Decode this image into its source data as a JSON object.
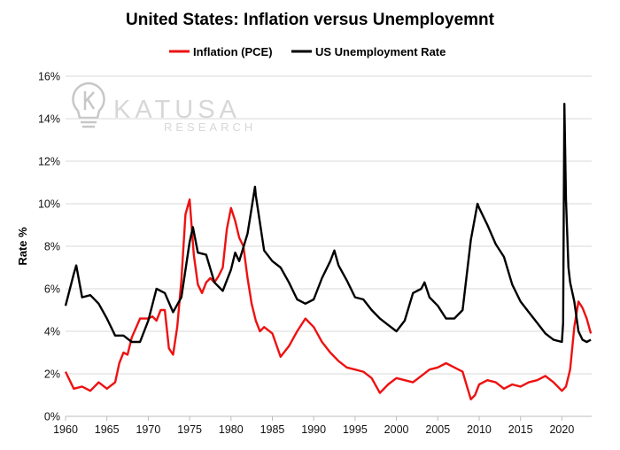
{
  "chart_data": {
    "type": "line",
    "title": "United States: Inflation versus Unemployemnt",
    "ylabel": "Rate %",
    "xlabel": "",
    "xlim": [
      1960,
      2023.6
    ],
    "ylim": [
      0,
      16
    ],
    "x_ticks": [
      "1960",
      "1965",
      "1970",
      "1975",
      "1980",
      "1985",
      "1990",
      "1995",
      "2000",
      "2005",
      "2010",
      "2015",
      "2020"
    ],
    "y_ticks": [
      "0%",
      "2%",
      "4%",
      "6%",
      "8%",
      "10%",
      "12%",
      "14%",
      "16%"
    ],
    "grid": "horizontal",
    "legend_position": "top",
    "series": [
      {
        "name": "Inflation (PCE)",
        "color": "#ee1111",
        "points": [
          [
            1960,
            2.1
          ],
          [
            1961,
            1.3
          ],
          [
            1962,
            1.4
          ],
          [
            1963,
            1.2
          ],
          [
            1964,
            1.6
          ],
          [
            1965,
            1.3
          ],
          [
            1966,
            1.6
          ],
          [
            1966.5,
            2.5
          ],
          [
            1967,
            3.0
          ],
          [
            1967.5,
            2.9
          ],
          [
            1968,
            3.7
          ],
          [
            1969,
            4.6
          ],
          [
            1970,
            4.6
          ],
          [
            1970.5,
            4.7
          ],
          [
            1971,
            4.5
          ],
          [
            1971.5,
            5.0
          ],
          [
            1972,
            5.0
          ],
          [
            1972.5,
            3.2
          ],
          [
            1973,
            2.9
          ],
          [
            1973.5,
            4.2
          ],
          [
            1974,
            6.4
          ],
          [
            1974.5,
            9.5
          ],
          [
            1975,
            10.2
          ],
          [
            1975.5,
            7.6
          ],
          [
            1976,
            6.2
          ],
          [
            1976.5,
            5.8
          ],
          [
            1977,
            6.3
          ],
          [
            1977.5,
            6.5
          ],
          [
            1978,
            6.3
          ],
          [
            1978.5,
            6.6
          ],
          [
            1979,
            7.0
          ],
          [
            1979.5,
            8.8
          ],
          [
            1980,
            9.8
          ],
          [
            1980.5,
            9.2
          ],
          [
            1981,
            8.4
          ],
          [
            1981.5,
            8.0
          ],
          [
            1982,
            6.5
          ],
          [
            1982.5,
            5.3
          ],
          [
            1983,
            4.5
          ],
          [
            1983.5,
            4.0
          ],
          [
            1984,
            4.2
          ],
          [
            1985,
            3.9
          ],
          [
            1986,
            2.8
          ],
          [
            1987,
            3.3
          ],
          [
            1988,
            4.0
          ],
          [
            1989,
            4.6
          ],
          [
            1990,
            4.2
          ],
          [
            1991,
            3.5
          ],
          [
            1992,
            3.0
          ],
          [
            1993,
            2.6
          ],
          [
            1994,
            2.3
          ],
          [
            1995,
            2.2
          ],
          [
            1996,
            2.1
          ],
          [
            1997,
            1.8
          ],
          [
            1998,
            1.1
          ],
          [
            1999,
            1.5
          ],
          [
            2000,
            1.8
          ],
          [
            2001,
            1.7
          ],
          [
            2002,
            1.6
          ],
          [
            2003,
            1.9
          ],
          [
            2004,
            2.2
          ],
          [
            2005,
            2.3
          ],
          [
            2006,
            2.5
          ],
          [
            2007,
            2.3
          ],
          [
            2008,
            2.1
          ],
          [
            2009,
            0.8
          ],
          [
            2009.5,
            1.0
          ],
          [
            2010,
            1.5
          ],
          [
            2011,
            1.7
          ],
          [
            2012,
            1.6
          ],
          [
            2013,
            1.3
          ],
          [
            2014,
            1.5
          ],
          [
            2015,
            1.4
          ],
          [
            2016,
            1.6
          ],
          [
            2017,
            1.7
          ],
          [
            2018,
            1.9
          ],
          [
            2019,
            1.6
          ],
          [
            2020,
            1.2
          ],
          [
            2020.5,
            1.4
          ],
          [
            2021,
            2.2
          ],
          [
            2021.5,
            4.2
          ],
          [
            2022,
            5.4
          ],
          [
            2022.5,
            5.1
          ],
          [
            2023,
            4.6
          ],
          [
            2023.5,
            3.9
          ]
        ]
      },
      {
        "name": "US Unemployment Rate",
        "color": "#000000",
        "points": [
          [
            1960,
            5.2
          ],
          [
            1961,
            6.7
          ],
          [
            1961.3,
            7.1
          ],
          [
            1962,
            5.6
          ],
          [
            1963,
            5.7
          ],
          [
            1964,
            5.3
          ],
          [
            1965,
            4.6
          ],
          [
            1966,
            3.8
          ],
          [
            1967,
            3.8
          ],
          [
            1968,
            3.5
          ],
          [
            1969,
            3.5
          ],
          [
            1970,
            4.5
          ],
          [
            1971,
            6.0
          ],
          [
            1972,
            5.8
          ],
          [
            1973,
            4.9
          ],
          [
            1974,
            5.6
          ],
          [
            1975,
            8.2
          ],
          [
            1975.4,
            8.9
          ],
          [
            1976,
            7.7
          ],
          [
            1977,
            7.6
          ],
          [
            1978,
            6.3
          ],
          [
            1979,
            5.9
          ],
          [
            1980,
            6.9
          ],
          [
            1980.5,
            7.7
          ],
          [
            1981,
            7.3
          ],
          [
            1982,
            8.6
          ],
          [
            1982.5,
            9.8
          ],
          [
            1982.9,
            10.8
          ],
          [
            1983,
            10.4
          ],
          [
            1984,
            7.8
          ],
          [
            1985,
            7.3
          ],
          [
            1986,
            7.0
          ],
          [
            1987,
            6.3
          ],
          [
            1988,
            5.5
          ],
          [
            1989,
            5.3
          ],
          [
            1990,
            5.5
          ],
          [
            1991,
            6.5
          ],
          [
            1992,
            7.3
          ],
          [
            1992.5,
            7.8
          ],
          [
            1993,
            7.1
          ],
          [
            1994,
            6.4
          ],
          [
            1995,
            5.6
          ],
          [
            1996,
            5.5
          ],
          [
            1997,
            5.0
          ],
          [
            1998,
            4.6
          ],
          [
            1999,
            4.3
          ],
          [
            2000,
            4.0
          ],
          [
            2001,
            4.5
          ],
          [
            2002,
            5.8
          ],
          [
            2003,
            6.0
          ],
          [
            2003.4,
            6.3
          ],
          [
            2004,
            5.6
          ],
          [
            2005,
            5.2
          ],
          [
            2006,
            4.6
          ],
          [
            2007,
            4.6
          ],
          [
            2008,
            5.0
          ],
          [
            2009,
            8.3
          ],
          [
            2009.8,
            10.0
          ],
          [
            2010,
            9.8
          ],
          [
            2011,
            9.0
          ],
          [
            2012,
            8.1
          ],
          [
            2013,
            7.5
          ],
          [
            2014,
            6.2
          ],
          [
            2015,
            5.4
          ],
          [
            2016,
            4.9
          ],
          [
            2017,
            4.4
          ],
          [
            2018,
            3.9
          ],
          [
            2019,
            3.6
          ],
          [
            2020,
            3.5
          ],
          [
            2020.15,
            4.4
          ],
          [
            2020.3,
            14.7
          ],
          [
            2020.5,
            10.2
          ],
          [
            2020.8,
            7.0
          ],
          [
            2021,
            6.3
          ],
          [
            2021.5,
            5.4
          ],
          [
            2022,
            4.0
          ],
          [
            2022.5,
            3.6
          ],
          [
            2023,
            3.5
          ],
          [
            2023.5,
            3.6
          ]
        ]
      }
    ],
    "watermark": {
      "name": "KATUSA",
      "sub": "RESEARCH",
      "icon": "lightbulb-k-icon"
    }
  }
}
